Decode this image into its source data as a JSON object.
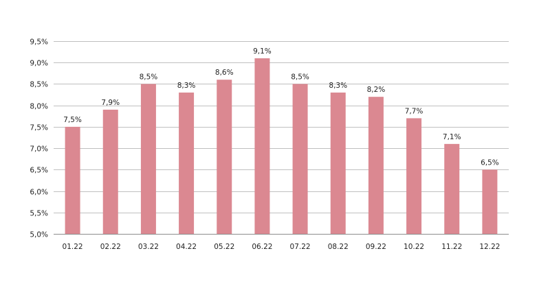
{
  "chart_data": {
    "type": "bar",
    "title": "",
    "xlabel": "",
    "ylabel": "",
    "categories": [
      "01.22",
      "02.22",
      "03.22",
      "04.22",
      "05.22",
      "06.22",
      "07.22",
      "08.22",
      "09.22",
      "10.22",
      "11.22",
      "12.22"
    ],
    "values": [
      7.5,
      7.9,
      8.5,
      8.3,
      8.6,
      9.1,
      8.5,
      8.3,
      8.2,
      7.7,
      7.1,
      6.5
    ],
    "data_labels": [
      "7,5%",
      "7,9%",
      "8,5%",
      "8,3%",
      "8,6%",
      "9,1%",
      "8,5%",
      "8,3%",
      "8,2%",
      "7,7%",
      "7,1%",
      "6,5%"
    ],
    "ylim": [
      5.0,
      9.5
    ],
    "yticks": [
      5.0,
      5.5,
      6.0,
      6.5,
      7.0,
      7.5,
      8.0,
      8.5,
      9.0,
      9.5
    ],
    "ytick_labels": [
      "5,0%",
      "5,5%",
      "6,0%",
      "6,5%",
      "7,0%",
      "7,5%",
      "8,0%",
      "8,5%",
      "9,0%",
      "9,5%"
    ],
    "grid": true,
    "legend": "none",
    "bar_color": "#db8891"
  }
}
